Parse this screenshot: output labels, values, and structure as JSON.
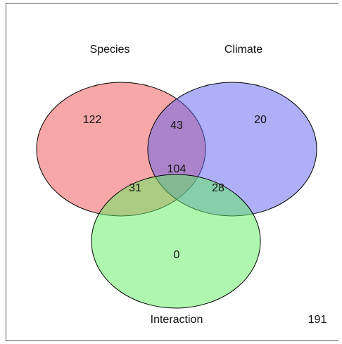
{
  "sets": [
    {
      "name": "Species",
      "color": "#f05050",
      "opacity": 0.5,
      "stroke": "#000000"
    },
    {
      "name": "Climate",
      "color": "#6060f0",
      "opacity": 0.5,
      "stroke": "#000000"
    },
    {
      "name": "Interaction",
      "color": "#60f060",
      "opacity": 0.5,
      "stroke": "#000000"
    }
  ],
  "regions": {
    "species_only": "122",
    "climate_only": "20",
    "interaction_only": "0",
    "species_climate": "43",
    "species_interaction": "31",
    "climate_interaction": "28",
    "all_three": "104"
  },
  "total_outside": "191"
}
